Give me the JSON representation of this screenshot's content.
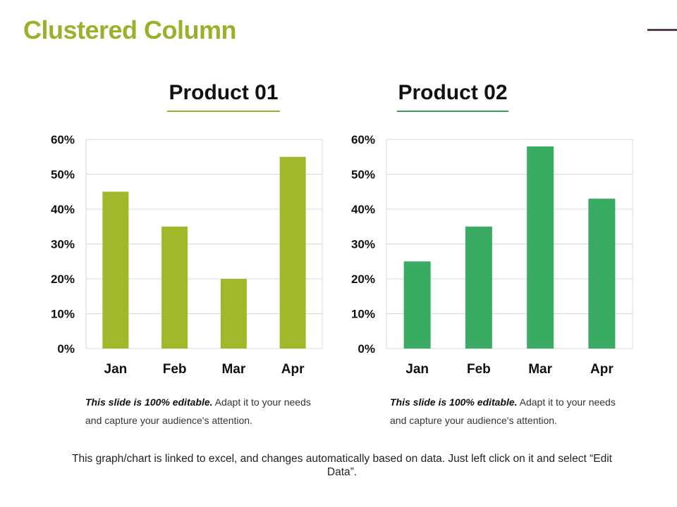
{
  "slide": {
    "title": "Clustered Column",
    "accent_color": "#9bb12b",
    "corner_line_color": "#5a3a55",
    "footer": "This graph/chart is linked to excel, and changes automatically based on data. Just left click on it and select “Edit Data”."
  },
  "products": [
    {
      "title": "Product 01",
      "color": "#a2b72a",
      "underline_color": "#9bb12b",
      "caption_bold": "This slide is 100% editable.",
      "caption_rest": " Adapt it to your needs and capture your audience's attention."
    },
    {
      "title": "Product 02",
      "color": "#3aab62",
      "underline_color": "#3b9a5a",
      "caption_bold": "This slide is 100% editable.",
      "caption_rest": " Adapt it to your needs and capture your audience's attention."
    }
  ],
  "chart_data": [
    {
      "type": "bar",
      "title": "Product 01",
      "categories": [
        "Jan",
        "Feb",
        "Mar",
        "Apr"
      ],
      "values": [
        45,
        35,
        20,
        55
      ],
      "ylim": [
        0,
        60
      ],
      "yticks": [
        0,
        10,
        20,
        30,
        40,
        50,
        60
      ],
      "ytick_labels": [
        "0%",
        "10%",
        "20%",
        "30%",
        "40%",
        "50%",
        "60%"
      ],
      "color": "#a2b72a",
      "grid": true,
      "legend": "none"
    },
    {
      "type": "bar",
      "title": "Product 02",
      "categories": [
        "Jan",
        "Feb",
        "Mar",
        "Apr"
      ],
      "values": [
        25,
        35,
        58,
        43
      ],
      "ylim": [
        0,
        60
      ],
      "yticks": [
        0,
        10,
        20,
        30,
        40,
        50,
        60
      ],
      "ytick_labels": [
        "0%",
        "10%",
        "20%",
        "30%",
        "40%",
        "50%",
        "60%"
      ],
      "color": "#3aab62",
      "grid": true,
      "legend": "none"
    }
  ]
}
